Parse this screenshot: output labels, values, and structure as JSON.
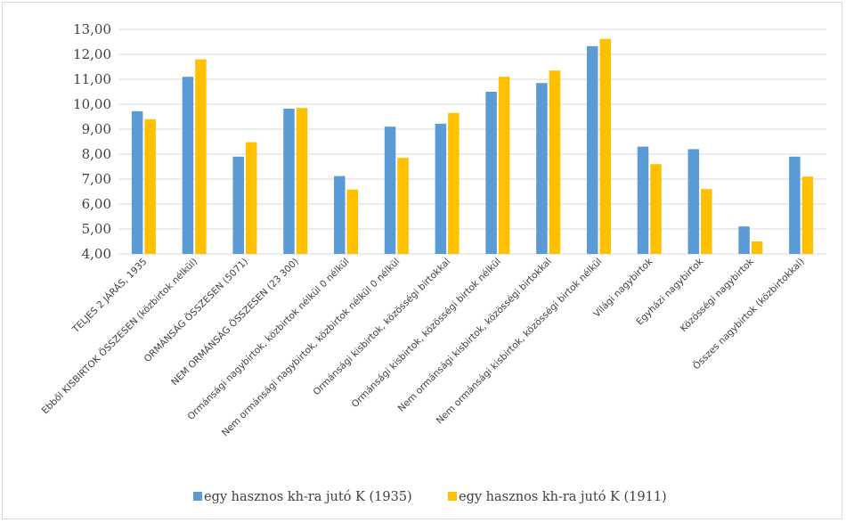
{
  "chart_data": {
    "type": "bar",
    "categories": [
      "TELJES 2 JÁRÁS, 1935",
      "Ebből KISBIRTOK ÖSSZESEN (közbirtok nélkül)",
      "ORMÁNSÁG ÖSSZESEN (5071)",
      "NEM ORMÁNSÁG ÖSSZESEN (23 300)",
      "Ormánsági nagybirtok, közbirtok nélkül 0 nélkül",
      "Nem ormánsági nagybirtok, közbirtok nélkül 0 nélkül",
      "Ormánsági kisbirtok, közösségi birtokkal",
      "Ormánsági kisbirtok, közösségi birtok nélkül",
      "Nem ormánsági kisbirtok, közösségi birtokkal",
      "Nem ormánsági kisbirtok, közösségi birtok nélkül",
      "Világi nagybirtok",
      "Egyházi nagybirtok",
      "Közösségi nagybirtok",
      "Összes nagybirtok (közbirtokkal)"
    ],
    "series": [
      {
        "name": "egy hasznos kh-ra jutó K (1935)",
        "color": "#5b9bd5",
        "values": [
          9.72,
          11.1,
          7.9,
          9.82,
          7.12,
          9.1,
          9.22,
          10.5,
          10.85,
          12.33,
          8.3,
          8.2,
          5.1,
          7.9
        ]
      },
      {
        "name": "egy hasznos kh-ra jutó K (1911)",
        "color": "#ffc000",
        "values": [
          9.4,
          11.8,
          8.48,
          9.85,
          6.58,
          7.85,
          9.65,
          11.1,
          11.35,
          12.62,
          7.6,
          6.6,
          4.5,
          7.1
        ]
      }
    ],
    "yticks": [
      "4,00",
      "5,00",
      "6,00",
      "7,00",
      "8,00",
      "9,00",
      "10,00",
      "11,00",
      "12,00",
      "13,00"
    ],
    "ylim": [
      4,
      13
    ],
    "grid": true,
    "legend_position": "bottom"
  }
}
